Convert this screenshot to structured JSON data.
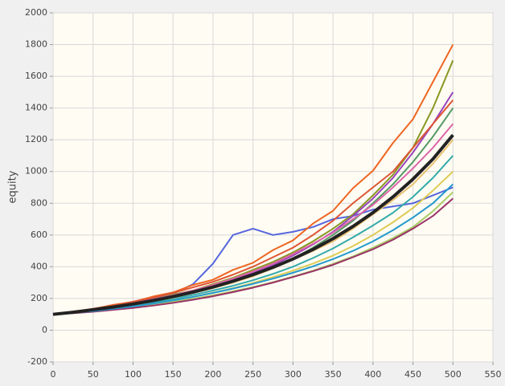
{
  "chart_data": {
    "type": "line",
    "y_label": "equity",
    "x": [
      0,
      25,
      50,
      75,
      100,
      125,
      150,
      175,
      200,
      225,
      250,
      275,
      300,
      325,
      350,
      375,
      400,
      425,
      450,
      475,
      500
    ],
    "xlim": [
      0,
      550
    ],
    "xticks": [
      0,
      50,
      100,
      150,
      200,
      250,
      300,
      350,
      400,
      450,
      500,
      550
    ],
    "ylim": [
      -200,
      2000
    ],
    "yticks": [
      -200,
      0,
      200,
      400,
      600,
      800,
      1000,
      1200,
      1400,
      1600,
      1800,
      2000
    ],
    "grid": true,
    "series": [
      {
        "color": "#5566dd",
        "values": [
          100,
          115,
          128,
          150,
          175,
          200,
          230,
          290,
          420,
          600,
          640,
          600,
          620,
          650,
          700,
          720,
          760,
          780,
          800,
          850,
          900
        ]
      },
      {
        "color": "#ee6622",
        "values": [
          100,
          118,
          133,
          160,
          178,
          212,
          238,
          285,
          318,
          380,
          425,
          505,
          566,
          672,
          752,
          895,
          1005,
          1180,
          1330,
          1565,
          1800
        ]
      },
      {
        "color": "#889922",
        "values": [
          100,
          112,
          132,
          150,
          170,
          195,
          225,
          250,
          290,
          330,
          380,
          430,
          490,
          560,
          640,
          730,
          850,
          980,
          1150,
          1400,
          1700
        ]
      },
      {
        "color": "#9944bb",
        "values": [
          100,
          110,
          125,
          145,
          168,
          190,
          215,
          245,
          280,
          320,
          360,
          410,
          470,
          540,
          620,
          720,
          830,
          960,
          1120,
          1300,
          1500
        ]
      },
      {
        "color": "#559966",
        "values": [
          100,
          114,
          128,
          148,
          165,
          185,
          210,
          238,
          268,
          300,
          345,
          395,
          450,
          520,
          600,
          690,
          800,
          920,
          1060,
          1220,
          1400
        ]
      },
      {
        "color": "#33aaaa",
        "values": [
          100,
          111,
          122,
          138,
          155,
          175,
          198,
          222,
          250,
          280,
          315,
          355,
          400,
          455,
          515,
          585,
          660,
          740,
          840,
          960,
          1100
        ]
      },
      {
        "color": "#dd66aa",
        "values": [
          100,
          113,
          130,
          150,
          172,
          195,
          220,
          250,
          285,
          325,
          370,
          420,
          480,
          545,
          615,
          700,
          790,
          900,
          1020,
          1150,
          1300
        ]
      },
      {
        "color": "#ddcc55",
        "values": [
          100,
          109,
          120,
          133,
          150,
          168,
          188,
          210,
          236,
          265,
          298,
          335,
          375,
          420,
          470,
          530,
          600,
          680,
          770,
          880,
          1000
        ]
      },
      {
        "color": "#aacc66",
        "values": [
          100,
          108,
          118,
          130,
          145,
          160,
          178,
          198,
          220,
          245,
          272,
          303,
          338,
          375,
          418,
          465,
          520,
          580,
          650,
          750,
          870
        ]
      },
      {
        "color": "#993366",
        "values": [
          100,
          107,
          116,
          128,
          140,
          155,
          172,
          192,
          214,
          240,
          268,
          300,
          335,
          372,
          412,
          460,
          510,
          570,
          640,
          720,
          830
        ]
      },
      {
        "color": "#e8c070",
        "values": [
          100,
          115,
          128,
          145,
          160,
          185,
          205,
          235,
          265,
          300,
          340,
          390,
          445,
          500,
          560,
          640,
          730,
          820,
          920,
          1050,
          1200
        ]
      },
      {
        "color": "#dd5533",
        "values": [
          100,
          116,
          135,
          155,
          180,
          205,
          235,
          270,
          305,
          350,
          400,
          460,
          520,
          600,
          690,
          800,
          900,
          1000,
          1150,
          1300,
          1450
        ]
      },
      {
        "color": "#2299cc",
        "values": [
          100,
          110,
          120,
          135,
          150,
          168,
          188,
          210,
          235,
          262,
          292,
          325,
          362,
          402,
          448,
          500,
          560,
          630,
          710,
          800,
          920
        ]
      },
      {
        "color": "#222222",
        "width": 4,
        "values": [
          100,
          113,
          129,
          146,
          165,
          187,
          212,
          240,
          272,
          309,
          350,
          396,
          449,
          509,
          577,
          654,
          741,
          840,
          952,
          1079,
          1230
        ]
      }
    ]
  }
}
